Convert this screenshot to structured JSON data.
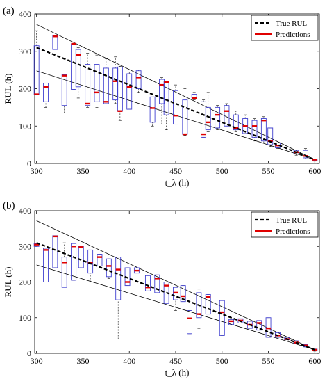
{
  "chart_data": [
    {
      "panel_label": "(a)",
      "type": "boxplot",
      "xlabel": "t_λ (h)",
      "ylabel": "RUL (h)",
      "xlim": [
        298,
        605
      ],
      "ylim": [
        0,
        400
      ],
      "xticks": [
        300,
        350,
        400,
        450,
        500,
        550,
        600
      ],
      "yticks": [
        0,
        100,
        200,
        300,
        400
      ],
      "grid": false,
      "legend_position": "top-right",
      "legend": [
        "True RUL",
        "Predictions"
      ],
      "true_rul": {
        "x": [
          300,
          600
        ],
        "y": [
          310,
          10
        ]
      },
      "bounds": {
        "upper": {
          "x": [
            300,
            600
          ],
          "y": [
            372,
            10
          ]
        },
        "lower": {
          "x": [
            300,
            600
          ],
          "y": [
            248,
            10
          ]
        }
      },
      "boxes": [
        {
          "x": 300,
          "q1": 185,
          "q3": 315,
          "median": 185,
          "wlo": 185,
          "whi": 355
        },
        {
          "x": 310,
          "q1": 165,
          "q3": 215,
          "median": 205,
          "wlo": 150,
          "whi": 215
        },
        {
          "x": 320,
          "q1": 305,
          "q3": 342,
          "median": 340,
          "wlo": 305,
          "whi": 342
        },
        {
          "x": 330,
          "q1": 155,
          "q3": 238,
          "median": 235,
          "wlo": 135,
          "whi": 238
        },
        {
          "x": 340,
          "q1": 198,
          "q3": 320,
          "median": 320,
          "wlo": 198,
          "whi": 320
        },
        {
          "x": 345,
          "q1": 205,
          "q3": 305,
          "median": 290,
          "wlo": 175,
          "whi": 310
        },
        {
          "x": 355,
          "q1": 155,
          "q3": 265,
          "median": 160,
          "wlo": 150,
          "whi": 295
        },
        {
          "x": 365,
          "q1": 165,
          "q3": 265,
          "median": 190,
          "wlo": 150,
          "whi": 290
        },
        {
          "x": 375,
          "q1": 160,
          "q3": 255,
          "median": 165,
          "wlo": 160,
          "whi": 280
        },
        {
          "x": 385,
          "q1": 170,
          "q3": 255,
          "median": 220,
          "wlo": 160,
          "whi": 285
        },
        {
          "x": 390,
          "q1": 140,
          "q3": 258,
          "median": 140,
          "wlo": 115,
          "whi": 260
        },
        {
          "x": 400,
          "q1": 145,
          "q3": 240,
          "median": 205,
          "wlo": 145,
          "whi": 245
        },
        {
          "x": 410,
          "q1": 200,
          "q3": 248,
          "median": 230,
          "wlo": 190,
          "whi": 250
        },
        {
          "x": 425,
          "q1": 110,
          "q3": 178,
          "median": 148,
          "wlo": 100,
          "whi": 178
        },
        {
          "x": 435,
          "q1": 160,
          "q3": 225,
          "median": 210,
          "wlo": 105,
          "whi": 230
        },
        {
          "x": 440,
          "q1": 130,
          "q3": 220,
          "median": 218,
          "wlo": 90,
          "whi": 220
        },
        {
          "x": 450,
          "q1": 105,
          "q3": 195,
          "median": 128,
          "wlo": 105,
          "whi": 210
        },
        {
          "x": 460,
          "q1": 78,
          "q3": 170,
          "median": 78,
          "wlo": 75,
          "whi": 200
        },
        {
          "x": 470,
          "q1": 175,
          "q3": 185,
          "median": 175,
          "wlo": 170,
          "whi": 190
        },
        {
          "x": 480,
          "q1": 70,
          "q3": 165,
          "median": 78,
          "wlo": 70,
          "whi": 170
        },
        {
          "x": 485,
          "q1": 90,
          "q3": 150,
          "median": 110,
          "wlo": 85,
          "whi": 190
        },
        {
          "x": 495,
          "q1": 95,
          "q3": 150,
          "median": 130,
          "wlo": 90,
          "whi": 155
        },
        {
          "x": 505,
          "q1": 100,
          "q3": 155,
          "median": 140,
          "wlo": 100,
          "whi": 160
        },
        {
          "x": 515,
          "q1": 90,
          "q3": 130,
          "median": 95,
          "wlo": 85,
          "whi": 140
        },
        {
          "x": 525,
          "q1": 80,
          "q3": 120,
          "median": 100,
          "wlo": 80,
          "whi": 130
        },
        {
          "x": 535,
          "q1": 70,
          "q3": 115,
          "median": 100,
          "wlo": 60,
          "whi": 120
        },
        {
          "x": 545,
          "q1": 60,
          "q3": 120,
          "median": 115,
          "wlo": 55,
          "whi": 125
        },
        {
          "x": 552,
          "q1": 50,
          "q3": 95,
          "median": 60,
          "wlo": 45,
          "whi": 95
        },
        {
          "x": 560,
          "q1": 42,
          "q3": 55,
          "median": 48,
          "wlo": 40,
          "whi": 55
        },
        {
          "x": 580,
          "q1": 25,
          "q3": 35,
          "median": 30,
          "wlo": 22,
          "whi": 35
        },
        {
          "x": 590,
          "q1": 15,
          "q3": 35,
          "median": 20,
          "wlo": 12,
          "whi": 40
        },
        {
          "x": 600,
          "q1": 8,
          "q3": 12,
          "median": 10,
          "wlo": 6,
          "whi": 12
        }
      ]
    },
    {
      "panel_label": "(b)",
      "type": "boxplot",
      "xlabel": "t_λ (h)",
      "ylabel": "RUL (h)",
      "xlim": [
        298,
        605
      ],
      "ylim": [
        0,
        400
      ],
      "xticks": [
        300,
        350,
        400,
        450,
        500,
        550,
        600
      ],
      "yticks": [
        0,
        100,
        200,
        300,
        400
      ],
      "grid": false,
      "legend_position": "top-right",
      "legend": [
        "True RUL",
        "Predictions"
      ],
      "true_rul": {
        "x": [
          300,
          600
        ],
        "y": [
          310,
          10
        ]
      },
      "bounds": {
        "upper": {
          "x": [
            300,
            600
          ],
          "y": [
            372,
            10
          ]
        },
        "lower": {
          "x": [
            300,
            600
          ],
          "y": [
            248,
            10
          ]
        }
      },
      "boxes": [
        {
          "x": 300,
          "q1": 300,
          "q3": 308,
          "median": 305,
          "wlo": 300,
          "whi": 308
        },
        {
          "x": 310,
          "q1": 200,
          "q3": 295,
          "median": 290,
          "wlo": 200,
          "whi": 295
        },
        {
          "x": 320,
          "q1": 240,
          "q3": 330,
          "median": 328,
          "wlo": 240,
          "whi": 330
        },
        {
          "x": 330,
          "q1": 185,
          "q3": 270,
          "median": 255,
          "wlo": 185,
          "whi": 310
        },
        {
          "x": 340,
          "q1": 205,
          "q3": 308,
          "median": 300,
          "wlo": 205,
          "whi": 308
        },
        {
          "x": 348,
          "q1": 240,
          "q3": 300,
          "median": 298,
          "wlo": 240,
          "whi": 300
        },
        {
          "x": 358,
          "q1": 225,
          "q3": 290,
          "median": 255,
          "wlo": 200,
          "whi": 290
        },
        {
          "x": 368,
          "q1": 245,
          "q3": 278,
          "median": 270,
          "wlo": 245,
          "whi": 278
        },
        {
          "x": 378,
          "q1": 215,
          "q3": 265,
          "median": 245,
          "wlo": 210,
          "whi": 265
        },
        {
          "x": 388,
          "q1": 150,
          "q3": 270,
          "median": 235,
          "wlo": 40,
          "whi": 270
        },
        {
          "x": 398,
          "q1": 190,
          "q3": 240,
          "median": 200,
          "wlo": 190,
          "whi": 240
        },
        {
          "x": 408,
          "q1": 225,
          "q3": 240,
          "median": 232,
          "wlo": 225,
          "whi": 240
        },
        {
          "x": 420,
          "q1": 175,
          "q3": 218,
          "median": 185,
          "wlo": 175,
          "whi": 218
        },
        {
          "x": 430,
          "q1": 170,
          "q3": 220,
          "median": 210,
          "wlo": 170,
          "whi": 220
        },
        {
          "x": 440,
          "q1": 140,
          "q3": 200,
          "median": 190,
          "wlo": 140,
          "whi": 200
        },
        {
          "x": 450,
          "q1": 150,
          "q3": 185,
          "median": 170,
          "wlo": 120,
          "whi": 185
        },
        {
          "x": 458,
          "q1": 145,
          "q3": 190,
          "median": 160,
          "wlo": 145,
          "whi": 190
        },
        {
          "x": 465,
          "q1": 55,
          "q3": 120,
          "median": 98,
          "wlo": 55,
          "whi": 120
        },
        {
          "x": 475,
          "q1": 100,
          "q3": 170,
          "median": 110,
          "wlo": 70,
          "whi": 180
        },
        {
          "x": 485,
          "q1": 110,
          "q3": 165,
          "median": 158,
          "wlo": 110,
          "whi": 165
        },
        {
          "x": 500,
          "q1": 50,
          "q3": 148,
          "median": 115,
          "wlo": 50,
          "whi": 148
        },
        {
          "x": 510,
          "q1": 80,
          "q3": 95,
          "median": 90,
          "wlo": 80,
          "whi": 95
        },
        {
          "x": 520,
          "q1": 85,
          "q3": 97,
          "median": 92,
          "wlo": 85,
          "whi": 97
        },
        {
          "x": 530,
          "q1": 70,
          "q3": 90,
          "median": 80,
          "wlo": 70,
          "whi": 90
        },
        {
          "x": 540,
          "q1": 65,
          "q3": 92,
          "median": 85,
          "wlo": 65,
          "whi": 92
        },
        {
          "x": 550,
          "q1": 45,
          "q3": 100,
          "median": 70,
          "wlo": 45,
          "whi": 100
        },
        {
          "x": 560,
          "q1": 45,
          "q3": 58,
          "median": 50,
          "wlo": 45,
          "whi": 58
        },
        {
          "x": 570,
          "q1": 38,
          "q3": 45,
          "median": 40,
          "wlo": 38,
          "whi": 45
        },
        {
          "x": 580,
          "q1": 28,
          "q3": 35,
          "median": 30,
          "wlo": 28,
          "whi": 35
        },
        {
          "x": 590,
          "q1": 18,
          "q3": 25,
          "median": 22,
          "wlo": 18,
          "whi": 25
        },
        {
          "x": 600,
          "q1": 8,
          "q3": 12,
          "median": 10,
          "wlo": 6,
          "whi": 12
        }
      ]
    }
  ],
  "colors": {
    "box": "#4040d0",
    "prediction": "#e00000",
    "true_rul": "#000000",
    "bounds": "#000000"
  }
}
